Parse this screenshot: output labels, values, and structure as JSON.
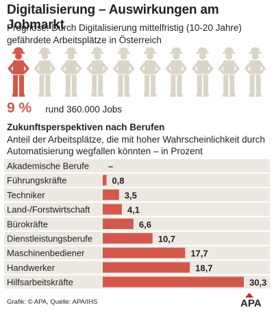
{
  "header": {
    "title": "Digitalisierung – Auswirkungen am Jobmarkt",
    "subtitle": "Prognose: Durch Digitalisierung mittelfristig (10-20 Jahre) gefährdete Arbeitsplätze in Österreich"
  },
  "workers": {
    "icon": "worker-icon",
    "total": 10,
    "highlighted": 1,
    "highlight_color": "#d4584a",
    "base_color": "#d9d5c7"
  },
  "summary": {
    "percent": "9 %",
    "jobs": "rund 360.000 Jobs"
  },
  "section": {
    "title": "Zukunftsperspektiven nach Berufen",
    "description": "Anteil der Arbeitsplätze, die mit hoher Wahrscheinlichkeit durch Automatisierung wegfallen könnten – in Prozent"
  },
  "chart_data": {
    "type": "bar",
    "orientation": "horizontal",
    "categories": [
      "Akademische Berufe",
      "Führungskräfte",
      "Techniker",
      "Land-/Forstwirtschaft",
      "Bürokräfte",
      "Dienstleistungsberufe",
      "Maschinenbediener",
      "Handwerker",
      "Hilfsarbeitskräfte"
    ],
    "values": [
      null,
      0.8,
      3.5,
      4.1,
      6.6,
      10.7,
      17.7,
      18.7,
      30.3
    ],
    "labels": [
      "–",
      "0,8",
      "3,5",
      "4,1",
      "6,6",
      "10,7",
      "17,7",
      "18,7",
      "30,3"
    ],
    "xlim": [
      0,
      30.3
    ],
    "bar_color": "#d4584a",
    "row_color": "#ebe9e1",
    "grid": false
  },
  "footer": {
    "source": "Grafik: © APA, Quelle: APA/IHS",
    "logo": "APA"
  }
}
